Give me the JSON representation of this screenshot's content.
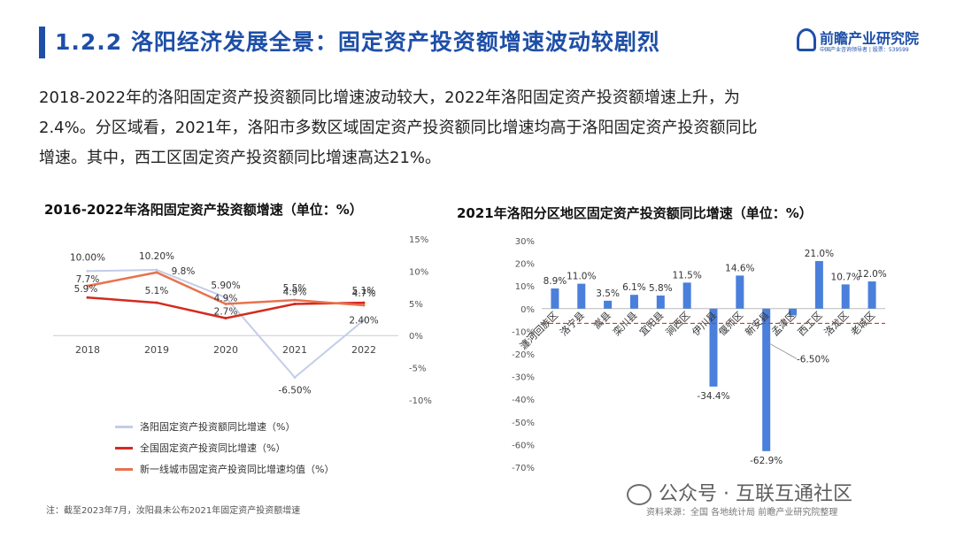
{
  "header": {
    "title": "1.2.2 洛阳经济发展全景：固定资产投资额增速波动较剧烈",
    "logo_text": "前瞻产业研究院",
    "logo_sub": "中国产业咨询领导者 | 股票：539599"
  },
  "summary": {
    "line1": "2018-2022年的洛阳固定资产投资额同比增速波动较大，2022年洛阳固定资产投资额增速上升，为",
    "line2": "2.4%。分区域看，2021年，洛阳市多数区域固定资产投资额同比增速均高于洛阳固定资产投资额同比",
    "line3": "增速。其中，西工区固定资产投资额同比增速高达21%。"
  },
  "colors": {
    "brand": "#1e4fa8",
    "luoyang": "#c3cde9",
    "national": "#d42a1f",
    "newtier1": "#e8724d",
    "bar": "#4a7fdb",
    "ref": "#e03030"
  },
  "chart_data": [
    {
      "type": "line",
      "title": "2016-2022年洛阳固定资产投资额增速（单位：%）",
      "x": [
        "2018",
        "2019",
        "2020",
        "2021",
        "2022"
      ],
      "ylim": [
        -10,
        15
      ],
      "yticks": [
        "15%",
        "10%",
        "5%",
        "0%",
        "-5%",
        "-10%"
      ],
      "series": [
        {
          "name": "洛阳固定资产投资额同比增速（%）",
          "values": [
            10.0,
            10.2,
            5.9,
            -6.5,
            2.4
          ],
          "labels": [
            "10.00%",
            "10.20%",
            "5.90%",
            "-6.50%",
            "2.40%"
          ]
        },
        {
          "name": "全国固定资产投资同比增速（%）",
          "values": [
            5.9,
            5.1,
            2.7,
            4.9,
            5.1
          ],
          "labels": [
            "5.9%",
            "5.1%",
            "2.7%",
            "4.9%",
            "5.1%"
          ]
        },
        {
          "name": "新一线城市固定资产投资同比增速均值（%）",
          "values": [
            7.7,
            9.8,
            4.9,
            5.5,
            4.7
          ],
          "labels": [
            "7.7%",
            "9.8%",
            "4.9%",
            "5.5%",
            "4.7%"
          ]
        }
      ]
    },
    {
      "type": "bar",
      "title": "2021年洛阳分区地区固定资产投资额同比增速（单位：%）",
      "categories": [
        "瀍河回族区",
        "洛宁县",
        "嵩县",
        "栾川县",
        "宜阳县",
        "涧西区",
        "伊川县",
        "偃师区",
        "新安县",
        "孟津区",
        "西工区",
        "洛龙区",
        "老城区"
      ],
      "values": [
        8.9,
        11.0,
        3.5,
        6.1,
        5.8,
        11.5,
        -34.4,
        14.6,
        -62.9,
        -3.0,
        21.0,
        10.7,
        12.0
      ],
      "labels": [
        "8.9%",
        "11.0%",
        "3.5%",
        "6.1%",
        "5.8%",
        "11.5%",
        "-34.4%",
        "14.6%",
        "-62.9%",
        "",
        "21.0%",
        "10.7%",
        "12.0%"
      ],
      "reference": {
        "value": -6.5,
        "label": "-6.50%"
      },
      "ylim": [
        -70,
        30
      ],
      "yticks": [
        "30%",
        "20%",
        "10%",
        "0%",
        "-10%",
        "-20%",
        "-30%",
        "-40%",
        "-50%",
        "-60%",
        "-70%"
      ]
    }
  ],
  "footer": {
    "note": "注：截至2023年7月，汝阳县未公布2021年固定资产投资额增速",
    "source": "资料来源：全国 各地统计局 前瞻产业研究院整理",
    "wechat": "公众号 · 互联互通社区"
  }
}
